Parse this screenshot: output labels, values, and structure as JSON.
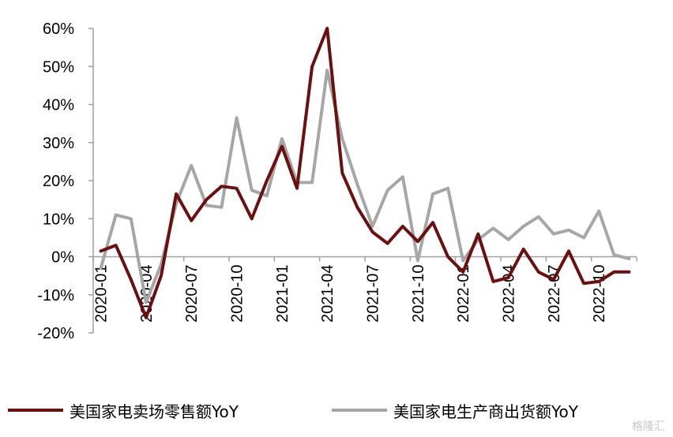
{
  "chart_data": {
    "type": "line",
    "title": "",
    "xlabel": "",
    "ylabel": "",
    "ylim": [
      -20,
      60
    ],
    "y_ticks": [
      -20,
      -10,
      0,
      10,
      20,
      30,
      40,
      50,
      60
    ],
    "y_tick_labels": [
      "-20%",
      "-10%",
      "0%",
      "10%",
      "20%",
      "30%",
      "40%",
      "50%",
      "60%"
    ],
    "x": [
      "2020-01",
      "2020-02",
      "2020-03",
      "2020-04",
      "2020-05",
      "2020-06",
      "2020-07",
      "2020-08",
      "2020-09",
      "2020-10",
      "2020-11",
      "2020-12",
      "2021-01",
      "2021-02",
      "2021-03",
      "2021-04",
      "2021-05",
      "2021-06",
      "2021-07",
      "2021-08",
      "2021-09",
      "2021-10",
      "2021-11",
      "2021-12",
      "2022-01",
      "2022-02",
      "2022-03",
      "2022-04",
      "2022-05",
      "2022-06",
      "2022-07",
      "2022-08",
      "2022-09",
      "2022-10",
      "2022-11",
      "2022-12"
    ],
    "x_tick_labels": [
      "2020-01",
      "2020-04",
      "2020-07",
      "2020-10",
      "2021-01",
      "2021-04",
      "2021-07",
      "2021-10",
      "2022-01",
      "2022-04",
      "2022-07",
      "2022-10"
    ],
    "grid": false,
    "legend_position": "bottom",
    "series": [
      {
        "name": "美国家电卖场零售额YoY",
        "color": "#6b0f0f",
        "values": [
          1.5,
          3,
          -6,
          -16,
          -5,
          16.5,
          9.5,
          15,
          18.5,
          18,
          10,
          20,
          29,
          18,
          50,
          60,
          22,
          13,
          6.5,
          3.5,
          8,
          4,
          9,
          0,
          -4,
          6,
          -6.5,
          -5.5,
          2,
          -4,
          -6,
          1.5,
          -7,
          -6.5,
          -4,
          -4
        ]
      },
      {
        "name": "美国家电生产商出货额YoY",
        "color": "#a6a6a6",
        "values": [
          -3,
          11,
          10,
          -12,
          -2,
          14,
          24,
          13.5,
          13,
          36.5,
          17.5,
          16,
          31,
          19.5,
          19.5,
          49,
          31,
          19,
          8,
          17.5,
          21,
          -1,
          16.5,
          18,
          -1,
          4.5,
          7.5,
          4.5,
          8,
          10.5,
          6,
          7,
          5,
          12,
          0.5,
          -0.5
        ]
      }
    ]
  },
  "watermark": "格隆汇"
}
